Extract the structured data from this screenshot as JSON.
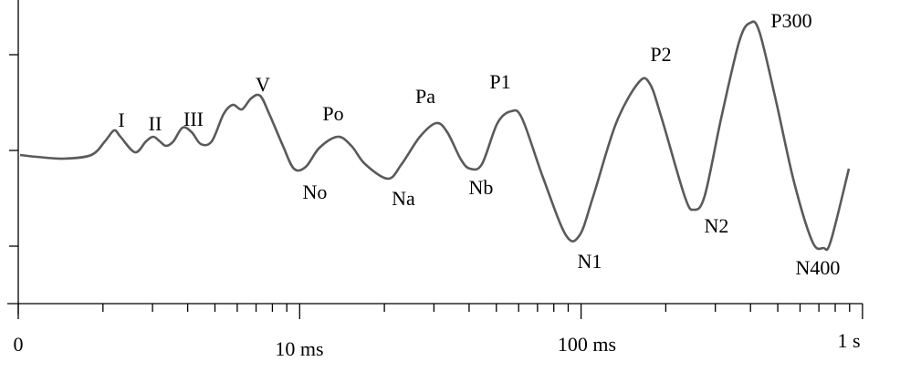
{
  "peaks": [
    "I",
    "II",
    "III",
    "V",
    "Po",
    "No",
    "Pa",
    "Na",
    "Nb",
    "P1",
    "N1",
    "P2",
    "N2",
    "P300",
    "N400"
  ],
  "axis": {
    "x_labels": [
      "0",
      "10 ms",
      "100 ms",
      "1 s"
    ]
  }
}
